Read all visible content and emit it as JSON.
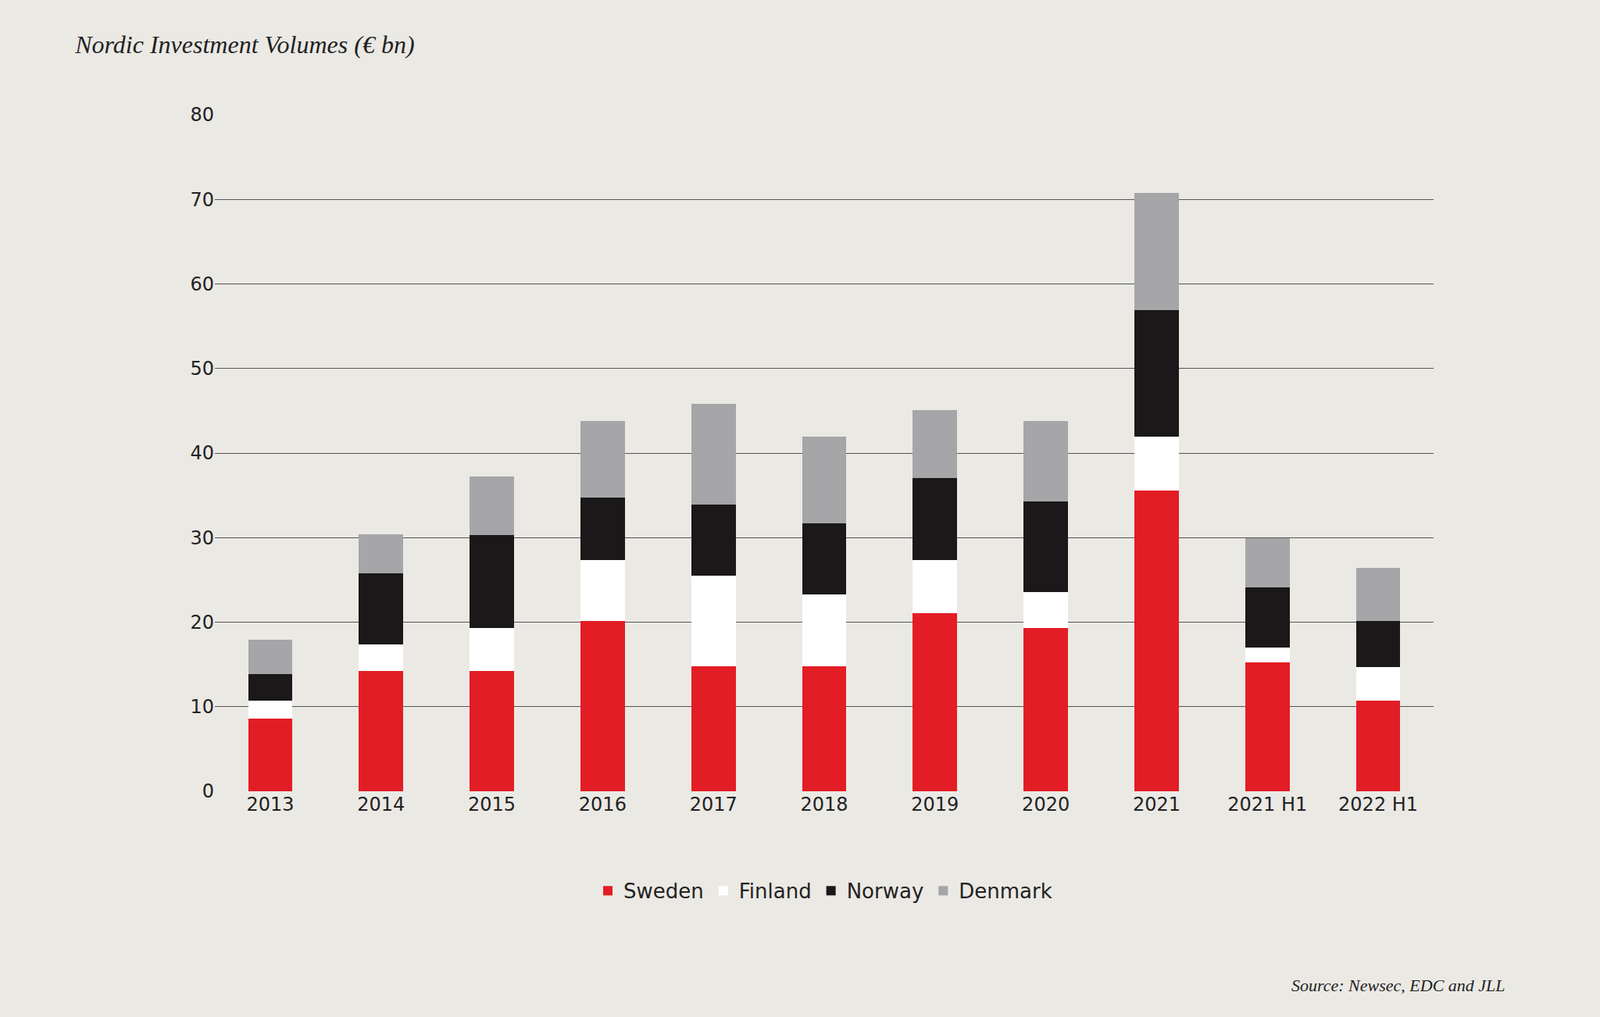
{
  "chart_data": {
    "type": "bar",
    "title": "Nordic Investment Volumes (€ bn)",
    "source": "Source: Newsec, EDC and JLL",
    "categories": [
      "2013",
      "2014",
      "2015",
      "2016",
      "2017",
      "2018",
      "2019",
      "2020",
      "2021",
      "2021 H1",
      "2022 H1"
    ],
    "series": [
      {
        "name": "Sweden",
        "color": "#e31d25",
        "values": [
          8.6,
          14.2,
          14.2,
          20.1,
          14.8,
          14.8,
          21.1,
          19.3,
          35.6,
          15.2,
          10.7
        ]
      },
      {
        "name": "Finland",
        "color": "#ffffff",
        "values": [
          2.1,
          3.2,
          5.1,
          7.2,
          10.7,
          8.5,
          6.2,
          4.3,
          6.3,
          1.8,
          4.0
        ]
      },
      {
        "name": "Norway",
        "color": "#1a1818",
        "values": [
          3.2,
          8.4,
          11.0,
          7.4,
          8.4,
          8.4,
          9.7,
          10.7,
          15.0,
          7.1,
          5.4
        ]
      },
      {
        "name": "Denmark",
        "color": "#a6a6a8",
        "values": [
          4.0,
          4.6,
          6.9,
          9.1,
          11.9,
          10.2,
          8.1,
          9.5,
          13.9,
          5.8,
          6.3
        ]
      }
    ],
    "ylim": [
      0,
      80
    ],
    "yticks": [
      0,
      10,
      20,
      30,
      40,
      50,
      60,
      70,
      80
    ],
    "grid": true,
    "stacked": true,
    "legend": "bottom"
  }
}
